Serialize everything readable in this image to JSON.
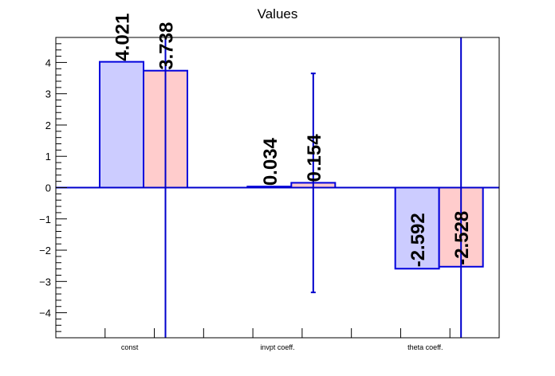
{
  "chart_data": {
    "type": "bar",
    "title": "Values",
    "categories": [
      "const",
      "invpt coeff.",
      "theta coeff."
    ],
    "series": [
      {
        "values": [
          4.021,
          0.034,
          -2.592
        ],
        "labels": [
          "4.021",
          "0.034",
          "-2.592"
        ],
        "error_low": [
          null,
          null,
          null
        ],
        "error_high": [
          null,
          null,
          null
        ]
      },
      {
        "values": [
          3.738,
          0.154,
          -2.528
        ],
        "labels": [
          "3.738",
          "0.154",
          "-2.528"
        ],
        "error_low": [
          -4.8,
          -3.35,
          -4.8
        ],
        "error_high": [
          4.8,
          3.65,
          4.8
        ]
      }
    ],
    "ylim": [
      -4.8,
      4.8
    ],
    "yticks": [
      -4,
      -3,
      -2,
      -1,
      0,
      1,
      2,
      3,
      4
    ],
    "ytick_labels": [
      "−4",
      "−3",
      "−2",
      "−1",
      "0",
      "1",
      "2",
      "3",
      "4"
    ],
    "grid": false,
    "colors": {
      "series_fill": [
        "#ccccff",
        "#ffcccc"
      ],
      "bar_stroke": "#0000dd",
      "error_bar": "#0000cc",
      "zero_line": "#0000cc",
      "axis": "#000000"
    }
  }
}
